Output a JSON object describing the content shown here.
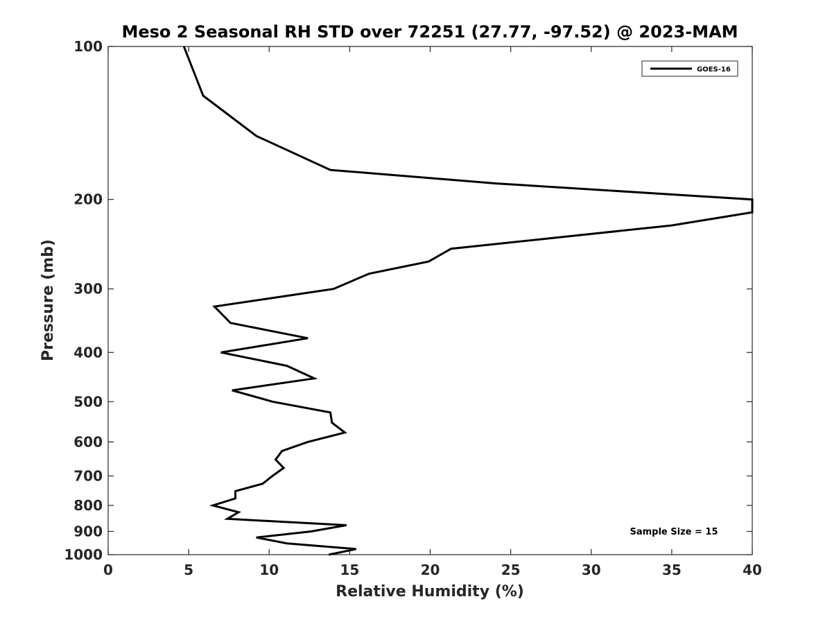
{
  "chart_data": {
    "type": "line",
    "title": "Meso 2 Seasonal RH STD over 72251 (27.77, -97.52) @ 2023-MAM",
    "xlabel": "Relative Humidity (%)",
    "ylabel": "Pressure (mb)",
    "xlim": [
      0,
      40
    ],
    "ylim": [
      100,
      1000
    ],
    "y_scale": "log",
    "y_reversed": true,
    "grid": false,
    "x_ticks": [
      0,
      5,
      10,
      15,
      20,
      25,
      30,
      35,
      40
    ],
    "x_tick_labels": [
      "0",
      "5",
      "10",
      "15",
      "20",
      "25",
      "30",
      "35",
      "40"
    ],
    "y_ticks": [
      100,
      200,
      300,
      400,
      500,
      600,
      700,
      800,
      900,
      1000
    ],
    "y_tick_labels": [
      "100",
      "200",
      "300",
      "400",
      "500",
      "600",
      "700",
      "800",
      "900",
      "1000"
    ],
    "legend": {
      "position": "top-right",
      "entries": [
        "GOES-16"
      ]
    },
    "annotation": "Sample Size = 15",
    "series": [
      {
        "name": "GOES-16",
        "color": "#000000",
        "points": [
          {
            "x": 4.7,
            "p": 100
          },
          {
            "x": 5.9,
            "p": 125
          },
          {
            "x": 9.2,
            "p": 150
          },
          {
            "x": 13.8,
            "p": 175
          },
          {
            "x": 24.1,
            "p": 186
          },
          {
            "x": 40.0,
            "p": 200
          },
          {
            "x": 40.0,
            "p": 212
          },
          {
            "x": 35.0,
            "p": 225
          },
          {
            "x": 21.3,
            "p": 250
          },
          {
            "x": 19.9,
            "p": 265
          },
          {
            "x": 16.2,
            "p": 280
          },
          {
            "x": 14.0,
            "p": 300
          },
          {
            "x": 6.6,
            "p": 325
          },
          {
            "x": 7.6,
            "p": 350
          },
          {
            "x": 12.4,
            "p": 375
          },
          {
            "x": 7.0,
            "p": 400
          },
          {
            "x": 11.1,
            "p": 425
          },
          {
            "x": 12.8,
            "p": 450
          },
          {
            "x": 7.7,
            "p": 475
          },
          {
            "x": 10.2,
            "p": 500
          },
          {
            "x": 13.8,
            "p": 525
          },
          {
            "x": 13.9,
            "p": 550
          },
          {
            "x": 14.7,
            "p": 575
          },
          {
            "x": 12.4,
            "p": 600
          },
          {
            "x": 10.8,
            "p": 625
          },
          {
            "x": 10.4,
            "p": 650
          },
          {
            "x": 10.9,
            "p": 675
          },
          {
            "x": 10.2,
            "p": 700
          },
          {
            "x": 9.6,
            "p": 725
          },
          {
            "x": 7.9,
            "p": 750
          },
          {
            "x": 7.9,
            "p": 775
          },
          {
            "x": 6.5,
            "p": 800
          },
          {
            "x": 8.1,
            "p": 825
          },
          {
            "x": 7.4,
            "p": 850
          },
          {
            "x": 14.8,
            "p": 875
          },
          {
            "x": 12.6,
            "p": 900
          },
          {
            "x": 9.2,
            "p": 925
          },
          {
            "x": 11.1,
            "p": 950
          },
          {
            "x": 15.4,
            "p": 975
          },
          {
            "x": 13.7,
            "p": 1000
          }
        ]
      }
    ]
  }
}
